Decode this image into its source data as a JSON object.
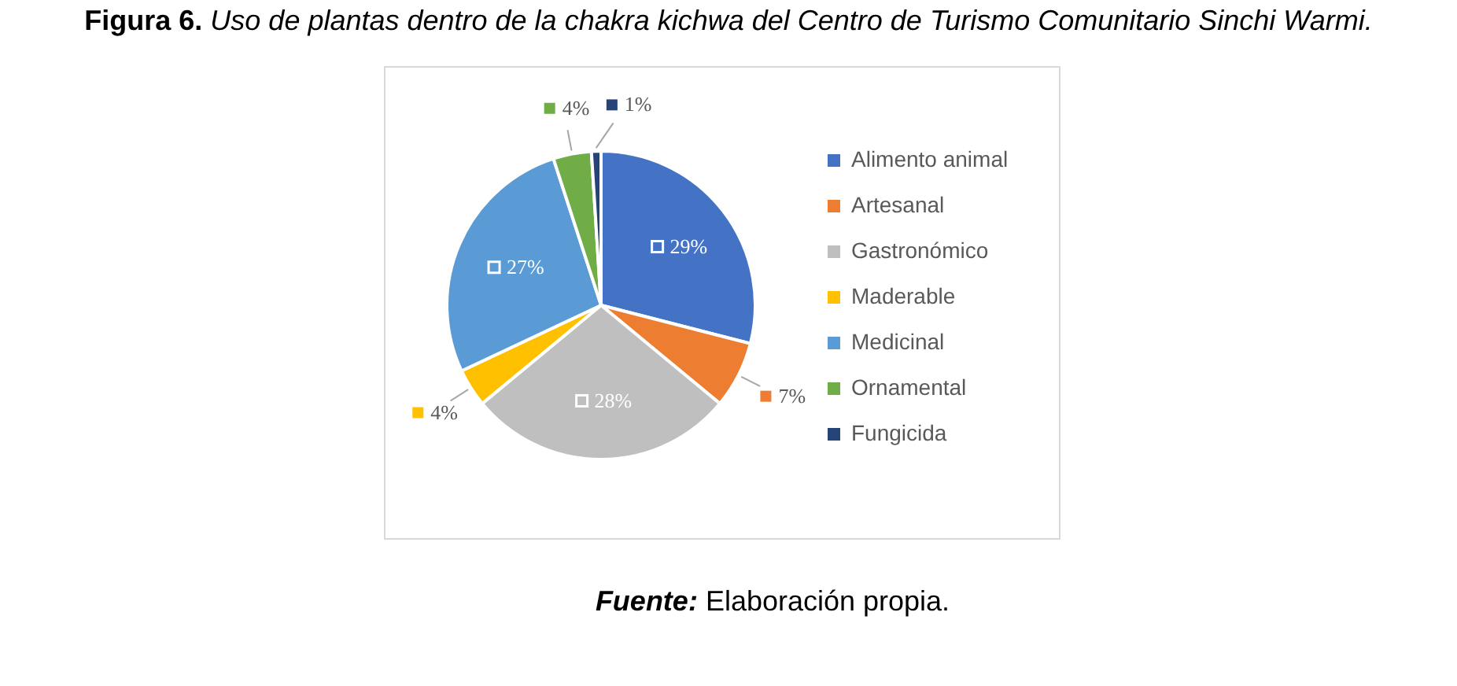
{
  "chart_data": {
    "type": "pie",
    "title": "Figura 6. Uso de plantas dentro de la chakra kichwa del Centro de Turismo Comunitario Sinchi Warmi.",
    "categories": [
      "Alimento animal",
      "Artesanal",
      "Gastronómico",
      "Maderable",
      "Medicinal",
      "Ornamental",
      "Fungicida"
    ],
    "values": [
      29,
      7,
      28,
      4,
      27,
      4,
      1
    ],
    "colors": [
      "#4472c4",
      "#ed7d31",
      "#bfbfbf",
      "#ffc000",
      "#5b9bd5",
      "#70ad47",
      "#264478"
    ],
    "value_labels": [
      "29%",
      "7%",
      "28%",
      "4%",
      "27%",
      "4%",
      "1%"
    ],
    "legend": "right",
    "annotations": [
      "Fuente: Elaboración propia."
    ]
  }
}
